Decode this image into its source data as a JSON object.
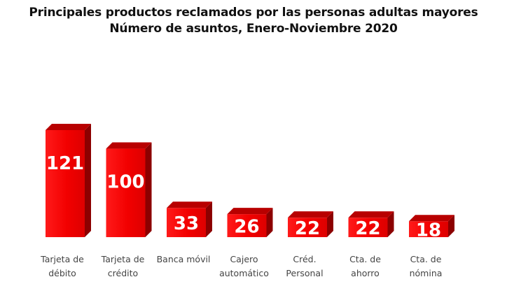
{
  "chart_data": {
    "type": "bar",
    "title": "Principales productos reclamados por las personas adultas mayores",
    "subtitle": "Número de asuntos, Enero-Noviembre 2020",
    "categories": [
      [
        "Tarjeta de",
        "débito"
      ],
      [
        "Tarjeta de",
        "crédito"
      ],
      [
        "Banca móvil"
      ],
      [
        "Cajero",
        "automático"
      ],
      [
        "Créd.",
        "Personal"
      ],
      [
        "Cta. de",
        "ahorro"
      ],
      [
        "Cta. de",
        "nómina"
      ]
    ],
    "values": [
      121,
      100,
      33,
      26,
      22,
      22,
      18
    ],
    "xlabel": "",
    "ylabel": "",
    "ylim": [
      0,
      130
    ],
    "grid": false,
    "legend": "none",
    "colors": {
      "front": "#f20000",
      "top": "#b80000",
      "side": "#8c0000",
      "label": "#ffffff",
      "category": "#444444"
    }
  }
}
